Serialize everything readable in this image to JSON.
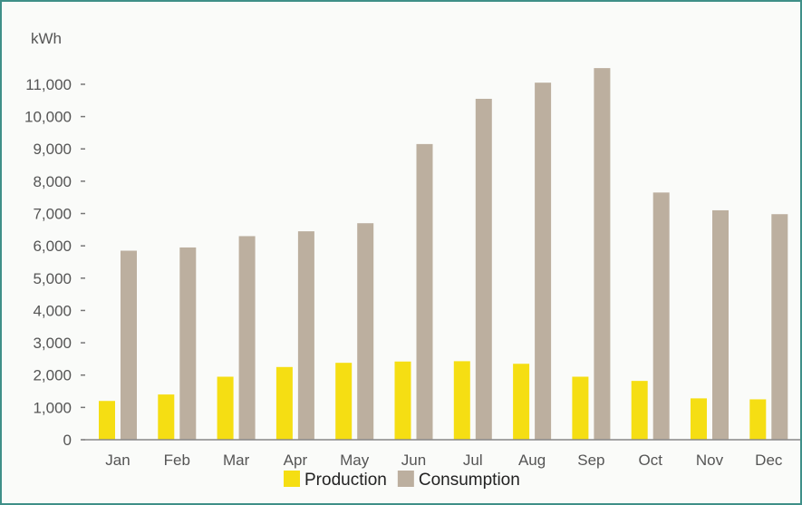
{
  "chart_data": {
    "type": "bar",
    "unit_label": "kWh",
    "categories": [
      "Jan",
      "Feb",
      "Mar",
      "Apr",
      "May",
      "Jun",
      "Jul",
      "Aug",
      "Sep",
      "Oct",
      "Nov",
      "Dec"
    ],
    "series": [
      {
        "name": "Production",
        "color": "#f5de13",
        "values": [
          1200,
          1400,
          1950,
          2250,
          2380,
          2420,
          2430,
          2350,
          1950,
          1820,
          1280,
          1250
        ]
      },
      {
        "name": "Consumption",
        "color": "#bcaf9f",
        "values": [
          5850,
          5950,
          6300,
          6450,
          6700,
          9150,
          10550,
          11050,
          11500,
          7650,
          7100,
          6980
        ]
      }
    ],
    "ylim": [
      0,
      11700
    ],
    "yticks": [
      0,
      1000,
      2000,
      3000,
      4000,
      5000,
      6000,
      7000,
      8000,
      9000,
      10000,
      11000
    ],
    "ytick_labels": [
      "0",
      "1,000",
      "2,000",
      "3,000",
      "4,000",
      "5,000",
      "6,000",
      "7,000",
      "8,000",
      "9,000",
      "10,000",
      "11,000"
    ],
    "grid": false,
    "legend_position": "bottom-center"
  }
}
